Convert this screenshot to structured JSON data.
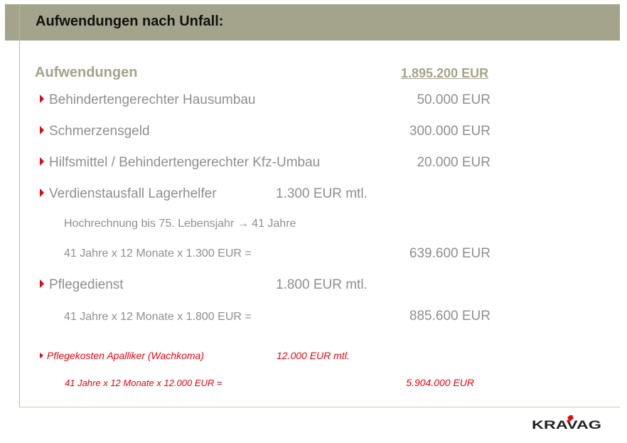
{
  "header": {
    "title": "Aufwendungen nach Unfall:"
  },
  "summary": {
    "label": "Aufwendungen",
    "total": "1.895.200 EUR"
  },
  "items": [
    {
      "label": "Behindertengerechter Hausumbau",
      "amount": "50.000 EUR"
    },
    {
      "label": "Schmerzensgeld",
      "amount": "300.000 EUR"
    },
    {
      "label": "Hilfsmittel / Behindertengerechter Kfz-Umbau",
      "amount": "20.000 EUR"
    },
    {
      "label": "Verdienstausfall Lagerhelfer",
      "monthly": "1.300 EUR mtl.",
      "note": "Hochrechnung bis 75. Lebensjahr → 41 Jahre",
      "calc": "41 Jahre x 12 Monate x 1.300 EUR  =",
      "amount": "639.600 EUR"
    },
    {
      "label": "Pflegedienst",
      "monthly": "1.800 EUR mtl.",
      "calc": "41 Jahre x 12 Monate x 1.800 EUR  =",
      "amount": "885.600 EUR"
    },
    {
      "label": "Pflegekosten Apalliker (Wachkoma)",
      "monthly": "12.000 EUR mtl.",
      "calc": "41 Jahre x 12 Monate x 12.000 EUR  =",
      "amount": "5.904.000 EUR"
    }
  ],
  "logo": {
    "text": "KRAVAG"
  },
  "colors": {
    "header_bg": "#a4a38b",
    "accent_red": "#e30613",
    "text_gray": "#8f8f8f"
  }
}
